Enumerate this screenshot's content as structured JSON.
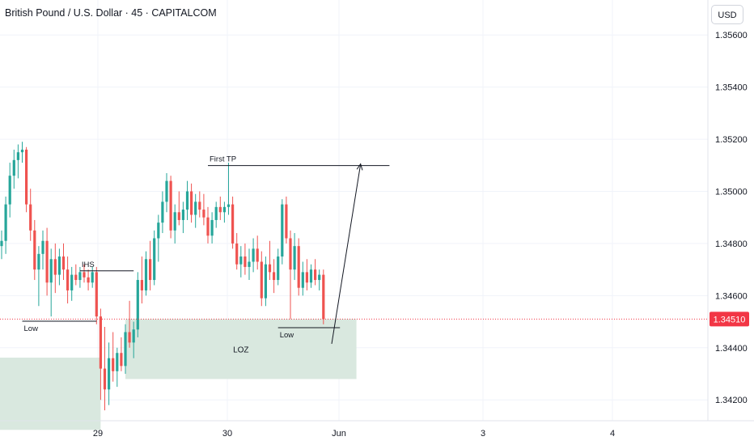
{
  "header": {
    "symbol_title": "British Pound / U.S. Dollar · 45 · CAPITALCOM",
    "currency_button": "USD"
  },
  "colors": {
    "up": "#26a69a",
    "down": "#ef5350",
    "zone_fill": "#d9e8df",
    "grid": "#f0f3fa",
    "price_line": "#f23645",
    "axis_text": "#131722",
    "drawing": "#131722"
  },
  "chart_data": {
    "type": "candlestick",
    "y_ticks": [
      "1.35600",
      "1.35400",
      "1.35200",
      "1.35000",
      "1.34800",
      "1.34600",
      "1.34400",
      "1.34200"
    ],
    "x_ticks": [
      "29",
      "30",
      "Jun",
      "3",
      "4"
    ],
    "ylim": [
      1.3412,
      1.357
    ],
    "current_price": "1.34510",
    "last_value": 1.3451,
    "candles": [
      [
        1.3479,
        1.3485,
        1.3474,
        1.3481
      ],
      [
        1.3481,
        1.3498,
        1.3476,
        1.3495
      ],
      [
        1.3495,
        1.3511,
        1.349,
        1.3506
      ],
      [
        1.3506,
        1.3516,
        1.3501,
        1.3512
      ],
      [
        1.3512,
        1.3518,
        1.3505,
        1.3515
      ],
      [
        1.3515,
        1.3519,
        1.3511,
        1.3516
      ],
      [
        1.3516,
        1.3517,
        1.3492,
        1.3495
      ],
      [
        1.3495,
        1.3501,
        1.3481,
        1.3485
      ],
      [
        1.3485,
        1.3489,
        1.3466,
        1.347
      ],
      [
        1.347,
        1.3479,
        1.3456,
        1.3476
      ],
      [
        1.3476,
        1.3485,
        1.347,
        1.3481
      ],
      [
        1.3481,
        1.3486,
        1.346,
        1.3465
      ],
      [
        1.3465,
        1.3478,
        1.3452,
        1.3474
      ],
      [
        1.3474,
        1.348,
        1.3461,
        1.3468
      ],
      [
        1.3468,
        1.3478,
        1.3464,
        1.3475
      ],
      [
        1.3475,
        1.348,
        1.3466,
        1.347
      ],
      [
        1.347,
        1.3475,
        1.3457,
        1.3462
      ],
      [
        1.3462,
        1.3471,
        1.3458,
        1.3468
      ],
      [
        1.3468,
        1.3472,
        1.3464,
        1.3466
      ],
      [
        1.3466,
        1.3471,
        1.3463,
        1.3469
      ],
      [
        1.3469,
        1.3472,
        1.3465,
        1.3467
      ],
      [
        1.3467,
        1.347,
        1.3462,
        1.3465
      ],
      [
        1.3465,
        1.3471,
        1.3463,
        1.3469
      ],
      [
        1.3469,
        1.3471,
        1.3449,
        1.3452
      ],
      [
        1.3452,
        1.3455,
        1.342,
        1.3432
      ],
      [
        1.3432,
        1.3448,
        1.3416,
        1.3424
      ],
      [
        1.3424,
        1.3442,
        1.3418,
        1.3436
      ],
      [
        1.3436,
        1.3446,
        1.3427,
        1.3431
      ],
      [
        1.3431,
        1.344,
        1.3425,
        1.3438
      ],
      [
        1.3438,
        1.3444,
        1.3431,
        1.3433
      ],
      [
        1.3433,
        1.3449,
        1.343,
        1.3446
      ],
      [
        1.3446,
        1.3458,
        1.344,
        1.3442
      ],
      [
        1.3442,
        1.345,
        1.3436,
        1.3447
      ],
      [
        1.3447,
        1.3469,
        1.3444,
        1.3466
      ],
      [
        1.3466,
        1.3475,
        1.3457,
        1.3462
      ],
      [
        1.3462,
        1.3477,
        1.346,
        1.3474
      ],
      [
        1.3474,
        1.3481,
        1.3462,
        1.3466
      ],
      [
        1.3466,
        1.3485,
        1.3464,
        1.3482
      ],
      [
        1.3482,
        1.3491,
        1.3473,
        1.3488
      ],
      [
        1.3488,
        1.35,
        1.3484,
        1.3496
      ],
      [
        1.3496,
        1.3507,
        1.3492,
        1.3504
      ],
      [
        1.3504,
        1.3506,
        1.3482,
        1.3485
      ],
      [
        1.3485,
        1.3495,
        1.348,
        1.3492
      ],
      [
        1.3492,
        1.35,
        1.3487,
        1.3489
      ],
      [
        1.3489,
        1.3496,
        1.3484,
        1.3493
      ],
      [
        1.3493,
        1.3504,
        1.3489,
        1.35
      ],
      [
        1.35,
        1.3503,
        1.3488,
        1.3491
      ],
      [
        1.3491,
        1.3499,
        1.3486,
        1.3496
      ],
      [
        1.3496,
        1.35,
        1.349,
        1.3493
      ],
      [
        1.3493,
        1.3499,
        1.3487,
        1.349
      ],
      [
        1.349,
        1.3494,
        1.348,
        1.3483
      ],
      [
        1.3483,
        1.3492,
        1.348,
        1.3489
      ],
      [
        1.3489,
        1.3496,
        1.3486,
        1.3494
      ],
      [
        1.3494,
        1.3498,
        1.3489,
        1.3492
      ],
      [
        1.3492,
        1.3496,
        1.3488,
        1.3494
      ],
      [
        1.3494,
        1.3511,
        1.3491,
        1.3495
      ],
      [
        1.3495,
        1.3498,
        1.3478,
        1.348
      ],
      [
        1.348,
        1.3484,
        1.347,
        1.3472
      ],
      [
        1.3472,
        1.3479,
        1.3467,
        1.3475
      ],
      [
        1.3475,
        1.348,
        1.3468,
        1.3471
      ],
      [
        1.3471,
        1.3478,
        1.3466,
        1.3473
      ],
      [
        1.3473,
        1.3482,
        1.3469,
        1.3478
      ],
      [
        1.3478,
        1.3483,
        1.347,
        1.3473
      ],
      [
        1.3473,
        1.3477,
        1.3456,
        1.3459
      ],
      [
        1.3459,
        1.3475,
        1.3456,
        1.3472
      ],
      [
        1.3472,
        1.3481,
        1.3466,
        1.3469
      ],
      [
        1.3469,
        1.3474,
        1.3461,
        1.3466
      ],
      [
        1.3466,
        1.3478,
        1.3464,
        1.3475
      ],
      [
        1.3475,
        1.3497,
        1.3472,
        1.3495
      ],
      [
        1.3495,
        1.3498,
        1.348,
        1.3482
      ],
      [
        1.3482,
        1.3485,
        1.3451,
        1.347
      ],
      [
        1.347,
        1.3484,
        1.3466,
        1.3479
      ],
      [
        1.3479,
        1.3482,
        1.346,
        1.3463
      ],
      [
        1.3463,
        1.3473,
        1.346,
        1.3469
      ],
      [
        1.3469,
        1.3474,
        1.3462,
        1.3465
      ],
      [
        1.3465,
        1.3472,
        1.3463,
        1.347
      ],
      [
        1.347,
        1.3474,
        1.3464,
        1.3466
      ],
      [
        1.3466,
        1.347,
        1.3462,
        1.3468
      ],
      [
        1.3468,
        1.347,
        1.3449,
        1.3451
      ]
    ],
    "zones": [
      {
        "from_candle": -9,
        "to_candle": 24,
        "top": 1.34362,
        "bottom": 1.34085
      },
      {
        "from_candle": 30,
        "to_candle": 86,
        "top": 1.3451,
        "bottom": 1.3428,
        "label": "LOZ"
      }
    ],
    "hlines": [
      {
        "from_candle": 5,
        "to_candle": 23,
        "price": 1.34502,
        "label": "Low"
      },
      {
        "from_candle": 19,
        "to_candle": 32,
        "price": 1.34695,
        "label": "IHS"
      },
      {
        "from_candle": 50,
        "to_candle": 94,
        "price": 1.35099,
        "label": "First TP"
      },
      {
        "from_candle": 67,
        "to_candle": 82,
        "price": 1.34477,
        "label": "Low"
      }
    ],
    "arrow": {
      "from_candle": 80,
      "from_price": 1.34415,
      "to_candle": 87,
      "to_price": 1.35105
    }
  }
}
